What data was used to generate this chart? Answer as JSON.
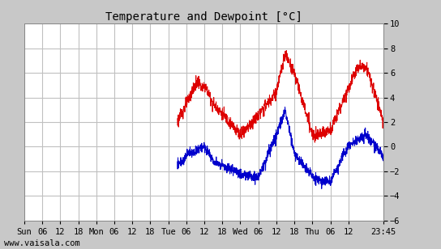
{
  "title": "Temperature and Dewpoint [°C]",
  "ylim": [
    -6,
    10
  ],
  "yticks": [
    -6,
    -4,
    -2,
    0,
    2,
    4,
    6,
    8,
    10
  ],
  "bg_color": "#ffffff",
  "outer_bg": "#c8c8c8",
  "grid_color": "#c0c0c0",
  "temp_color": "#dd0000",
  "dew_color": "#0000cc",
  "line_width": 0.7,
  "x_tick_labels": [
    "Sun",
    "06",
    "12",
    "18",
    "Mon",
    "06",
    "12",
    "18",
    "Tue",
    "06",
    "12",
    "18",
    "Wed",
    "06",
    "12",
    "18",
    "Thu",
    "06",
    "12",
    "23:45"
  ],
  "x_tick_positions": [
    0,
    6,
    12,
    18,
    24,
    30,
    36,
    42,
    48,
    54,
    60,
    66,
    72,
    78,
    84,
    90,
    96,
    102,
    108,
    119.75
  ],
  "x_total_hours": 119.75,
  "watermark": "www.vaisala.com",
  "title_fontsize": 10,
  "tick_fontsize": 7.5,
  "watermark_fontsize": 7.5,
  "data_start_hour": 51.0
}
